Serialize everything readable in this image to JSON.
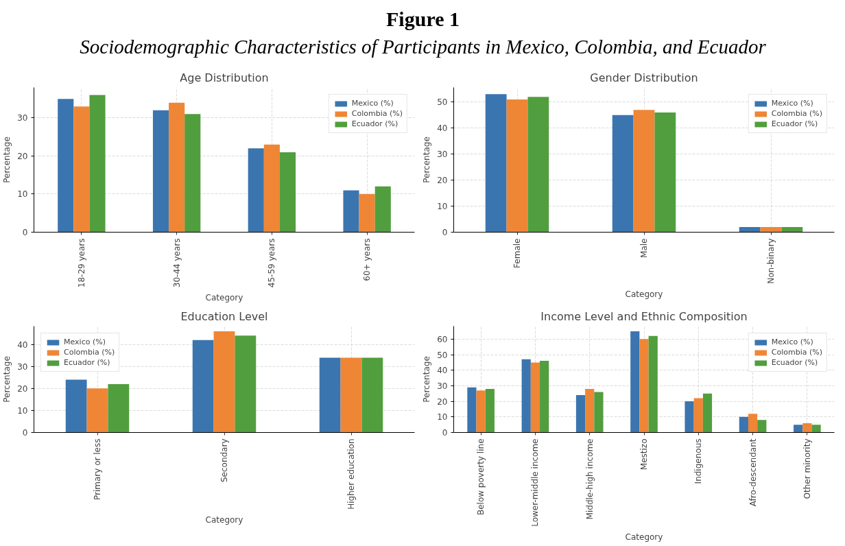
{
  "chart_data": [
    {
      "type": "other",
      "title": "Figure 1",
      "subtitle": "Sociodemographic Characteristics of Participants in Mexico, Colombia, and Ecuador"
    },
    {
      "type": "bar",
      "title": "Age Distribution",
      "xlabel": "Category",
      "ylabel": "Percentage",
      "categories": [
        "18-29 years",
        "30-44 years",
        "45-59 years",
        "60+ years"
      ],
      "ylim": [
        0,
        38
      ],
      "yticks": [
        0,
        10,
        20,
        30
      ],
      "grid": true,
      "legend": "top right",
      "series": [
        {
          "name": "Mexico (%)",
          "color": "#3b75af",
          "values": [
            35,
            32,
            22,
            11
          ]
        },
        {
          "name": "Colombia (%)",
          "color": "#ef8636",
          "values": [
            33,
            34,
            23,
            10
          ]
        },
        {
          "name": "Ecuador (%)",
          "color": "#519e3e",
          "values": [
            36,
            31,
            21,
            12
          ]
        }
      ]
    },
    {
      "type": "bar",
      "title": "Gender Distribution",
      "xlabel": "Category",
      "ylabel": "Percentage",
      "categories": [
        "Female",
        "Male",
        "Non-binary"
      ],
      "ylim": [
        0,
        55.6
      ],
      "yticks": [
        0,
        10,
        20,
        30,
        40,
        50
      ],
      "grid": true,
      "legend": "top right",
      "series": [
        {
          "name": "Mexico (%)",
          "color": "#3b75af",
          "values": [
            53,
            45,
            2
          ]
        },
        {
          "name": "Colombia (%)",
          "color": "#ef8636",
          "values": [
            51,
            47,
            2
          ]
        },
        {
          "name": "Ecuador (%)",
          "color": "#519e3e",
          "values": [
            52,
            46,
            2
          ]
        }
      ]
    },
    {
      "type": "bar",
      "title": "Education Level",
      "xlabel": "Category",
      "ylabel": "Percentage",
      "categories": [
        "Primary or less",
        "Secondary",
        "Higher education"
      ],
      "ylim": [
        0,
        48.3
      ],
      "yticks": [
        0,
        10,
        20,
        30,
        40
      ],
      "grid": true,
      "legend": "top left",
      "series": [
        {
          "name": "Mexico (%)",
          "color": "#3b75af",
          "values": [
            24,
            42,
            34
          ]
        },
        {
          "name": "Colombia (%)",
          "color": "#ef8636",
          "values": [
            20,
            46,
            34
          ]
        },
        {
          "name": "Ecuador (%)",
          "color": "#519e3e",
          "values": [
            22,
            44,
            34
          ]
        }
      ]
    },
    {
      "type": "bar",
      "title": "Income Level and Ethnic Composition",
      "xlabel": "Category",
      "ylabel": "Percentage",
      "categories": [
        "Below poverty line",
        "Lower-middle income",
        "Middle-high income",
        "Mestizo",
        "Indigenous",
        "Afro-descendant",
        "Other minority"
      ],
      "ylim": [
        0,
        68.3
      ],
      "yticks": [
        0,
        10,
        20,
        30,
        40,
        50,
        60
      ],
      "grid": true,
      "legend": "top right",
      "series": [
        {
          "name": "Mexico (%)",
          "color": "#3b75af",
          "values": [
            29,
            47,
            24,
            65,
            20,
            10,
            5
          ]
        },
        {
          "name": "Colombia (%)",
          "color": "#ef8636",
          "values": [
            27,
            45,
            28,
            60,
            22,
            12,
            6
          ]
        },
        {
          "name": "Ecuador (%)",
          "color": "#519e3e",
          "values": [
            28,
            46,
            26,
            62,
            25,
            8,
            5
          ]
        }
      ]
    }
  ]
}
